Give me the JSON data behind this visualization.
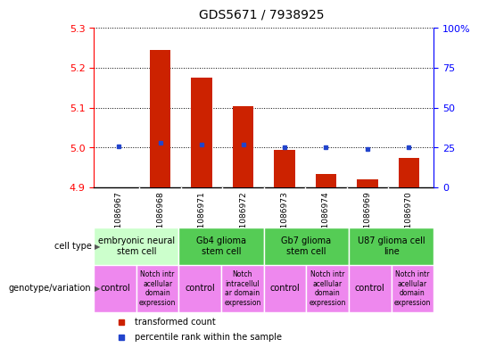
{
  "title": "GDS5671 / 7938925",
  "samples": [
    "GSM1086967",
    "GSM1086968",
    "GSM1086971",
    "GSM1086972",
    "GSM1086973",
    "GSM1086974",
    "GSM1086969",
    "GSM1086970"
  ],
  "transformed_count": [
    4.9,
    5.245,
    5.175,
    5.105,
    4.995,
    4.935,
    4.92,
    4.975
  ],
  "percentile_rank": [
    26,
    28,
    27,
    27,
    25,
    25,
    24,
    25
  ],
  "ylim_left": [
    4.9,
    5.3
  ],
  "ylim_right": [
    0,
    100
  ],
  "yticks_left": [
    4.9,
    5.0,
    5.1,
    5.2,
    5.3
  ],
  "yticks_right": [
    0,
    25,
    50,
    75,
    100
  ],
  "bar_color": "#cc2200",
  "dot_color": "#2244cc",
  "baseline": 4.9,
  "ct_groups": [
    {
      "start": 0,
      "end": 1,
      "label": "embryonic neural\nstem cell",
      "color": "#ccffcc"
    },
    {
      "start": 2,
      "end": 3,
      "label": "Gb4 glioma\nstem cell",
      "color": "#55cc55"
    },
    {
      "start": 4,
      "end": 5,
      "label": "Gb7 glioma\nstem cell",
      "color": "#55cc55"
    },
    {
      "start": 6,
      "end": 7,
      "label": "U87 glioma cell\nline",
      "color": "#55cc55"
    }
  ],
  "geno_groups": [
    {
      "start": 0,
      "end": 0,
      "label": "control"
    },
    {
      "start": 1,
      "end": 1,
      "label": "Notch intr\nacellular\ndomain\nexpression"
    },
    {
      "start": 2,
      "end": 2,
      "label": "control"
    },
    {
      "start": 3,
      "end": 3,
      "label": "Notch\nintracellul\nar domain\nexpression"
    },
    {
      "start": 4,
      "end": 4,
      "label": "control"
    },
    {
      "start": 5,
      "end": 5,
      "label": "Notch intr\nacellular\ndomain\nexpression"
    },
    {
      "start": 6,
      "end": 6,
      "label": "control"
    },
    {
      "start": 7,
      "end": 7,
      "label": "Notch intr\nacellular\ndomain\nexpression"
    }
  ],
  "geno_color": "#ee88ee",
  "sample_bg": "#cccccc",
  "legend_bar_label": "transformed count",
  "legend_dot_label": "percentile rank within the sample",
  "cell_type_label": "cell type",
  "genotype_label": "genotype/variation"
}
